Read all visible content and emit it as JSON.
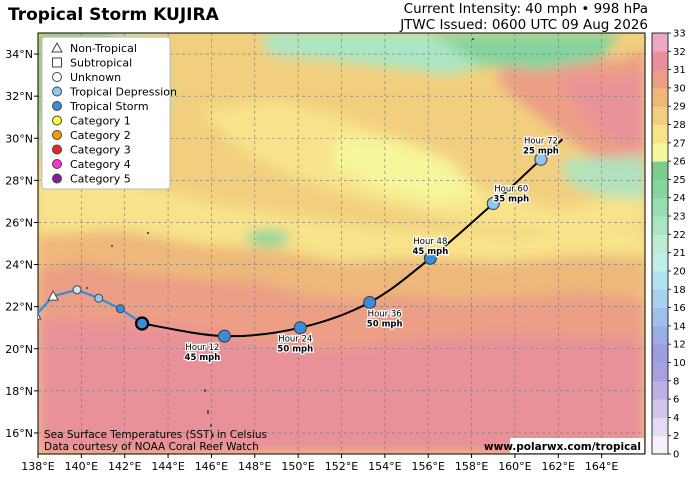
{
  "header": {
    "title": "Tropical Storm KUJIRA",
    "intensity": "Current Intensity: 40 mph • 998 hPa",
    "issued": "JTWC Issued: 0600 UTC 09 Aug 2026"
  },
  "map": {
    "lon_range": [
      138,
      166
    ],
    "lat_range": [
      15,
      35
    ],
    "lon_ticks": [
      "138°E",
      "140°E",
      "142°E",
      "144°E",
      "146°E",
      "148°E",
      "150°E",
      "152°E",
      "154°E",
      "156°E",
      "158°E",
      "160°E",
      "162°E",
      "164°E"
    ],
    "lat_ticks": [
      "16°N",
      "18°N",
      "20°N",
      "22°N",
      "24°N",
      "26°N",
      "28°N",
      "30°N",
      "32°N",
      "34°N"
    ]
  },
  "legend": {
    "items": [
      {
        "label": "Non-Tropical",
        "symbol": "triangle",
        "color": "#ffffff"
      },
      {
        "label": "Subtropical",
        "symbol": "square",
        "color": "#ffffff"
      },
      {
        "label": "Unknown",
        "symbol": "circle",
        "color": "#ffffff"
      },
      {
        "label": "Tropical Depression",
        "symbol": "circle",
        "color": "#8ec8f0"
      },
      {
        "label": "Tropical Storm",
        "symbol": "circle",
        "color": "#3a8cd8"
      },
      {
        "label": "Category 1",
        "symbol": "circle",
        "color": "#ffff33"
      },
      {
        "label": "Category 2",
        "symbol": "circle",
        "color": "#ff9900"
      },
      {
        "label": "Category 3",
        "symbol": "circle",
        "color": "#e8281e"
      },
      {
        "label": "Category 4",
        "symbol": "circle",
        "color": "#ff33cc"
      },
      {
        "label": "Category 5",
        "symbol": "circle",
        "color": "#8a1a9a"
      }
    ]
  },
  "colorbar": {
    "ticks": [
      "0",
      "2",
      "4",
      "6",
      "8",
      "10",
      "12",
      "14",
      "16",
      "18",
      "20",
      "21",
      "22",
      "23",
      "24",
      "25",
      "26",
      "27",
      "28",
      "29",
      "30",
      "31",
      "32",
      "33"
    ],
    "colors": [
      "#f5f0fa",
      "#e4dcf2",
      "#d0c6ec",
      "#bcb0e6",
      "#a9a0e0",
      "#9c9ee0",
      "#9aaee6",
      "#a0c0ec",
      "#a6d2f0",
      "#b0e2f2",
      "#c0eee8",
      "#bdedd6",
      "#aae6c4",
      "#96ddb0",
      "#86d49e",
      "#7ecb8e",
      "#f6f69a",
      "#f8e38a",
      "#f2cf7e",
      "#eeb87a",
      "#ec9e86",
      "#e88e9c",
      "#eca6c8"
    ]
  },
  "past_track": [
    {
      "lon": 137.9,
      "lat": 21.6,
      "type": "non-tropical"
    },
    {
      "lon": 138.7,
      "lat": 22.5,
      "type": "non-tropical"
    },
    {
      "lon": 139.8,
      "lat": 22.8,
      "type": "unknown"
    },
    {
      "lon": 140.8,
      "lat": 22.4,
      "type": "tropical-depression"
    },
    {
      "lon": 141.8,
      "lat": 21.9,
      "type": "tropical-storm"
    }
  ],
  "current_position": {
    "lon": 142.8,
    "lat": 21.2,
    "type": "tropical-storm"
  },
  "forecast_track": [
    {
      "lon": 146.6,
      "lat": 20.6,
      "type": "tropical-storm",
      "hour_label": "Hour 12",
      "wind_label": "45 mph"
    },
    {
      "lon": 150.1,
      "lat": 21.0,
      "type": "tropical-storm",
      "hour_label": "Hour 24",
      "wind_label": "50 mph"
    },
    {
      "lon": 153.3,
      "lat": 22.2,
      "type": "tropical-storm",
      "hour_label": "Hour 36",
      "wind_label": "50 mph"
    },
    {
      "lon": 156.1,
      "lat": 24.3,
      "type": "tropical-storm",
      "hour_label": "Hour 48",
      "wind_label": "45 mph"
    },
    {
      "lon": 159.0,
      "lat": 26.9,
      "type": "tropical-depression",
      "hour_label": "Hour 60",
      "wind_label": "35 mph"
    },
    {
      "lon": 161.2,
      "lat": 29.0,
      "type": "tropical-depression",
      "hour_label": "Hour 72",
      "wind_label": "25 mph"
    }
  ],
  "footer": {
    "credit1": "Sea Surface Temperatures (SST) in Celsius",
    "credit2": "Data courtesy of NOAA Coral Reef Watch",
    "website": "www.polarwx.com/tropical"
  },
  "colors": {
    "track_line": "#000000",
    "past_line": "#6fa7d8",
    "tropical_storm": "#3a8cd8",
    "tropical_depression": "#8ec8f0",
    "land": "#555555"
  }
}
